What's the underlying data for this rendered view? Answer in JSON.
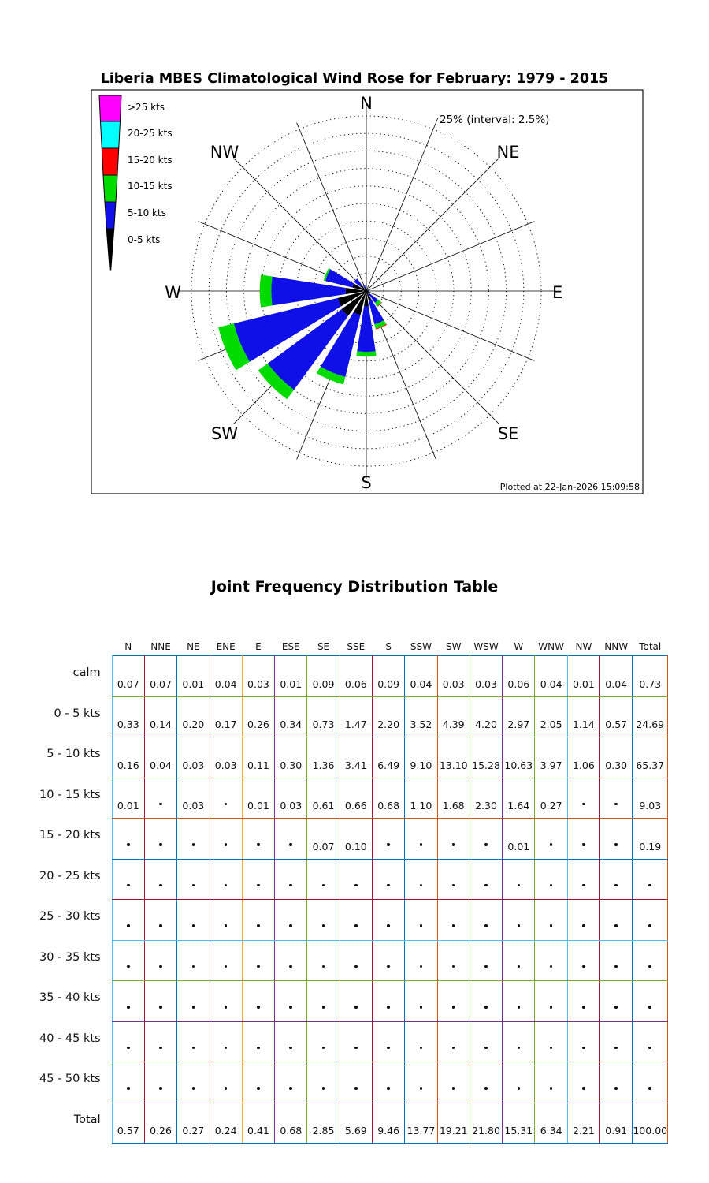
{
  "rose": {
    "title": "Liberia MBES Climatological Wind Rose for February: 1979 - 2015",
    "scale_note": "25% (interval: 2.5%)",
    "footer": "Plotted at 22-Jan-2026 15:09:58",
    "compass": [
      "N",
      "NE",
      "E",
      "SE",
      "S",
      "SW",
      "W",
      "NW"
    ],
    "legend": [
      {
        "label": ">25 kts",
        "color": "#FF00FF"
      },
      {
        "label": "20-25 kts",
        "color": "#00FFFF"
      },
      {
        "label": "15-20 kts",
        "color": "#FF0000"
      },
      {
        "label": "10-15 kts",
        "color": "#00DC00"
      },
      {
        "label": "5-10 kts",
        "color": "#0F0FE8"
      },
      {
        "label": "0-5 kts",
        "color": "#000000"
      }
    ]
  },
  "chart_data": {
    "type": "windrose_polar_bar",
    "title": "Liberia MBES Climatological Wind Rose for February: 1979 - 2015",
    "r_max_percent": 25,
    "r_interval_percent": 2.5,
    "rings": 10,
    "grid": "dotted-circles-with-16-radial-spokes",
    "directions": [
      "N",
      "NNE",
      "NE",
      "ENE",
      "E",
      "ESE",
      "SE",
      "SSE",
      "S",
      "SSW",
      "SW",
      "WSW",
      "W",
      "WNW",
      "NW",
      "NNW"
    ],
    "series": [
      {
        "name": "0-5 kts",
        "color": "#000000",
        "values": [
          0.33,
          0.14,
          0.2,
          0.17,
          0.26,
          0.34,
          0.73,
          1.47,
          2.2,
          3.52,
          4.39,
          4.2,
          2.97,
          2.05,
          1.14,
          0.57
        ]
      },
      {
        "name": "5-10 kts",
        "color": "#0F0FE8",
        "values": [
          0.16,
          0.04,
          0.03,
          0.03,
          0.11,
          0.3,
          1.36,
          3.41,
          6.49,
          9.1,
          13.1,
          15.28,
          10.63,
          3.97,
          1.06,
          0.3
        ]
      },
      {
        "name": "10-15 kts",
        "color": "#00DC00",
        "values": [
          0.01,
          0,
          0.03,
          0,
          0.01,
          0.03,
          0.61,
          0.66,
          0.68,
          1.1,
          1.68,
          2.3,
          1.64,
          0.27,
          0,
          0
        ]
      },
      {
        "name": "15-20 kts",
        "color": "#FF0000",
        "values": [
          0,
          0,
          0,
          0,
          0,
          0,
          0.07,
          0.1,
          0,
          0,
          0,
          0,
          0.01,
          0,
          0,
          0
        ]
      },
      {
        "name": "20-25 kts",
        "color": "#00FFFF",
        "values": [
          0,
          0,
          0,
          0,
          0,
          0,
          0,
          0,
          0,
          0,
          0,
          0,
          0,
          0,
          0,
          0
        ]
      },
      {
        "name": ">25 kts",
        "color": "#FF00FF",
        "values": [
          0,
          0,
          0,
          0,
          0,
          0,
          0,
          0,
          0,
          0,
          0,
          0,
          0,
          0,
          0,
          0
        ]
      }
    ]
  },
  "table": {
    "title": "Joint Frequency Distribution Table",
    "dot_marker": "•",
    "columns": [
      "N",
      "NNE",
      "NE",
      "ENE",
      "E",
      "ESE",
      "SE",
      "SSE",
      "S",
      "SSW",
      "SW",
      "WSW",
      "W",
      "WNW",
      "NW",
      "NNW",
      "Total"
    ],
    "rows": [
      {
        "label": "calm",
        "cells": [
          "0.07",
          "0.07",
          "0.01",
          "0.04",
          "0.03",
          "0.01",
          "0.09",
          "0.06",
          "0.09",
          "0.04",
          "0.03",
          "0.03",
          "0.06",
          "0.04",
          "0.01",
          "0.04",
          "0.73"
        ]
      },
      {
        "label": "0 - 5  kts",
        "cells": [
          "0.33",
          "0.14",
          "0.20",
          "0.17",
          "0.26",
          "0.34",
          "0.73",
          "1.47",
          "2.20",
          "3.52",
          "4.39",
          "4.20",
          "2.97",
          "2.05",
          "1.14",
          "0.57",
          "24.69"
        ]
      },
      {
        "label": "5 - 10 kts",
        "cells": [
          "0.16",
          "0.04",
          "0.03",
          "0.03",
          "0.11",
          "0.30",
          "1.36",
          "3.41",
          "6.49",
          "9.10",
          "13.10",
          "15.28",
          "10.63",
          "3.97",
          "1.06",
          "0.30",
          "65.37"
        ]
      },
      {
        "label": "10 - 15 kts",
        "cells": [
          "0.01",
          "•",
          "0.03",
          "•",
          "0.01",
          "0.03",
          "0.61",
          "0.66",
          "0.68",
          "1.10",
          "1.68",
          "2.30",
          "1.64",
          "0.27",
          "•",
          "•",
          "9.03"
        ]
      },
      {
        "label": "15 - 20 kts",
        "cells": [
          "•",
          "•",
          "•",
          "•",
          "•",
          "•",
          "0.07",
          "0.10",
          "•",
          "•",
          "•",
          "•",
          "0.01",
          "•",
          "•",
          "•",
          "0.19"
        ]
      },
      {
        "label": "20 - 25 kts",
        "cells": [
          "•",
          "•",
          "•",
          "•",
          "•",
          "•",
          "•",
          "•",
          "•",
          "•",
          "•",
          "•",
          "•",
          "•",
          "•",
          "•",
          "•"
        ]
      },
      {
        "label": "25 - 30 kts",
        "cells": [
          "•",
          "•",
          "•",
          "•",
          "•",
          "•",
          "•",
          "•",
          "•",
          "•",
          "•",
          "•",
          "•",
          "•",
          "•",
          "•",
          "•"
        ]
      },
      {
        "label": "30 - 35 kts",
        "cells": [
          "•",
          "•",
          "•",
          "•",
          "•",
          "•",
          "•",
          "•",
          "•",
          "•",
          "•",
          "•",
          "•",
          "•",
          "•",
          "•",
          "•"
        ]
      },
      {
        "label": "35 - 40 kts",
        "cells": [
          "•",
          "•",
          "•",
          "•",
          "•",
          "•",
          "•",
          "•",
          "•",
          "•",
          "•",
          "•",
          "•",
          "•",
          "•",
          "•",
          "•"
        ]
      },
      {
        "label": "40 - 45 kts",
        "cells": [
          "•",
          "•",
          "•",
          "•",
          "•",
          "•",
          "•",
          "•",
          "•",
          "•",
          "•",
          "•",
          "•",
          "•",
          "•",
          "•",
          "•"
        ]
      },
      {
        "label": "45 - 50 kts",
        "cells": [
          "•",
          "•",
          "•",
          "•",
          "•",
          "•",
          "•",
          "•",
          "•",
          "•",
          "•",
          "•",
          "•",
          "•",
          "•",
          "•",
          "•"
        ]
      },
      {
        "label": "Total",
        "cells": [
          "0.57",
          "0.26",
          "0.27",
          "0.24",
          "0.41",
          "0.68",
          "2.85",
          "5.69",
          "9.46",
          "13.77",
          "19.21",
          "21.80",
          "15.31",
          "6.34",
          "2.21",
          "0.91",
          "100.00"
        ]
      }
    ],
    "grid_colors_vertical": [
      "#4DBEEE",
      "#A2142F",
      "#0072BD",
      "#D95319",
      "#EDB120",
      "#7E2F8E",
      "#77AC30"
    ],
    "grid_colors_horizontal": [
      "#0072BD",
      "#77AC30",
      "#7E2F8E",
      "#EDB120",
      "#D95319",
      "#0072BD",
      "#A2142F",
      "#4DBEEE",
      "#77AC30",
      "#7E2F8E",
      "#EDB120",
      "#D95319",
      "#0072BD"
    ]
  }
}
